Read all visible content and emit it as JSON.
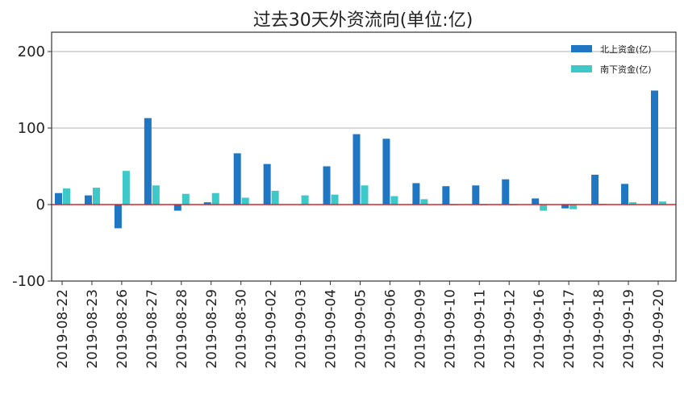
{
  "chart_data": {
    "type": "bar",
    "title": "过去30天外资流向(单位:亿)",
    "xlabel": "",
    "ylabel": "",
    "ylim": [
      -100,
      225
    ],
    "yticks": [
      200,
      100,
      0,
      -100
    ],
    "grid": "horizontal at 100 and 200",
    "legend_position": "top-right",
    "zero_line_color": "#d62728",
    "categories": [
      "2019-08-22",
      "2019-08-23",
      "2019-08-26",
      "2019-08-27",
      "2019-08-28",
      "2019-08-29",
      "2019-08-30",
      "2019-09-02",
      "2019-09-03",
      "2019-09-04",
      "2019-09-05",
      "2019-09-06",
      "2019-09-09",
      "2019-09-10",
      "2019-09-11",
      "2019-09-12",
      "2019-09-16",
      "2019-09-17",
      "2019-09-18",
      "2019-09-19",
      "2019-09-20"
    ],
    "series": [
      {
        "name": "北上资金(亿)",
        "color": "#1f77c4",
        "values": [
          15,
          12,
          -31,
          113,
          -8,
          3,
          67,
          53,
          0,
          50,
          92,
          86,
          28,
          24,
          25,
          33,
          8,
          -5,
          39,
          27,
          149
        ]
      },
      {
        "name": "南下资金(亿)",
        "color": "#3fc8c8",
        "values": [
          21,
          22,
          44,
          25,
          14,
          15,
          9,
          18,
          12,
          13,
          25,
          11,
          7,
          -1,
          -1,
          -1,
          -8,
          -6,
          1,
          3,
          4
        ]
      }
    ]
  }
}
